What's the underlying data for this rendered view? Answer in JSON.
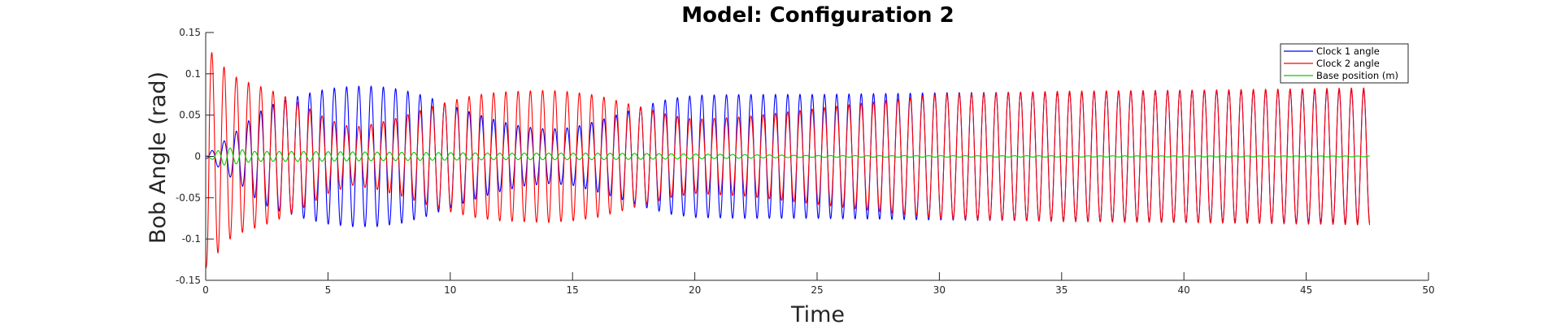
{
  "chart_data": {
    "type": "line",
    "title": "Model: Configuration 2",
    "xlabel": "Time",
    "ylabel": "Bob Angle (rad)",
    "xlim": [
      0,
      50
    ],
    "ylim": [
      -0.15,
      0.15
    ],
    "xticks": [
      0,
      5,
      10,
      15,
      20,
      25,
      30,
      35,
      40,
      45,
      50
    ],
    "yticks": [
      -0.15,
      -0.1,
      -0.05,
      0,
      0.05,
      0.1,
      0.15
    ],
    "ytick_labels": [
      "-0.15",
      "-0.1",
      "-0.05",
      "0",
      "0.05",
      "0.1",
      "0.15"
    ],
    "grid": false,
    "legend_position": "top-right",
    "series": [
      {
        "name": "Clock 1 angle",
        "color": "#0000ff",
        "frequency_hz": 1.9958,
        "envelope_t": [
          0,
          0.3,
          0.6,
          1.0,
          1.5,
          2.0,
          2.5,
          3.0,
          3.5,
          4.0,
          5.0,
          6.0,
          7.0,
          8.0,
          9.0,
          10.0,
          11.0,
          12.0,
          13.0,
          14.0,
          15.0,
          16.0,
          17.0,
          18.0,
          19.0,
          20.0,
          22.0,
          25.0,
          30.0,
          35.0,
          40.0,
          47.6
        ],
        "envelope_a": [
          0.002,
          0.008,
          0.015,
          0.025,
          0.036,
          0.05,
          0.06,
          0.066,
          0.07,
          0.075,
          0.082,
          0.085,
          0.085,
          0.081,
          0.073,
          0.062,
          0.052,
          0.043,
          0.036,
          0.033,
          0.035,
          0.043,
          0.052,
          0.062,
          0.07,
          0.074,
          0.075,
          0.075,
          0.077,
          0.078,
          0.08,
          0.08
        ],
        "phase_deg": 180,
        "end_value": -0.077
      },
      {
        "name": "Clock 2 angle",
        "color": "#ff0000",
        "frequency_hz": 1.9958,
        "envelope_t": [
          0,
          0.4,
          1.0,
          1.5,
          2.0,
          2.5,
          3.0,
          4.0,
          5.0,
          6.0,
          7.0,
          8.0,
          9.0,
          10.0,
          11.0,
          12.0,
          13.0,
          14.0,
          15.0,
          16.0,
          17.0,
          18.0,
          19.0,
          20.0,
          22.0,
          25.0,
          30.0,
          35.0,
          40.0,
          47.6
        ],
        "envelope_a": [
          0.135,
          0.12,
          0.1,
          0.092,
          0.087,
          0.082,
          0.076,
          0.062,
          0.045,
          0.035,
          0.04,
          0.048,
          0.058,
          0.067,
          0.074,
          0.078,
          0.079,
          0.08,
          0.078,
          0.074,
          0.066,
          0.058,
          0.05,
          0.045,
          0.048,
          0.058,
          0.075,
          0.079,
          0.08,
          0.083
        ],
        "phase_deg": 180,
        "start_value": -0.135,
        "end_value": 0.083
      },
      {
        "name": "Base position (m)",
        "color": "#00cc00",
        "frequency_hz": 1.9958,
        "envelope_t": [
          0,
          0.8,
          2.0,
          4.0,
          8.0,
          12.0,
          16.0,
          20.0,
          25.0,
          47.6
        ],
        "envelope_a": [
          0.0,
          0.011,
          0.006,
          0.006,
          0.005,
          0.004,
          0.004,
          0.003,
          0.001,
          0.0005
        ],
        "phase_deg": 0,
        "end_value": 0.0
      }
    ],
    "x_end": 47.6
  }
}
